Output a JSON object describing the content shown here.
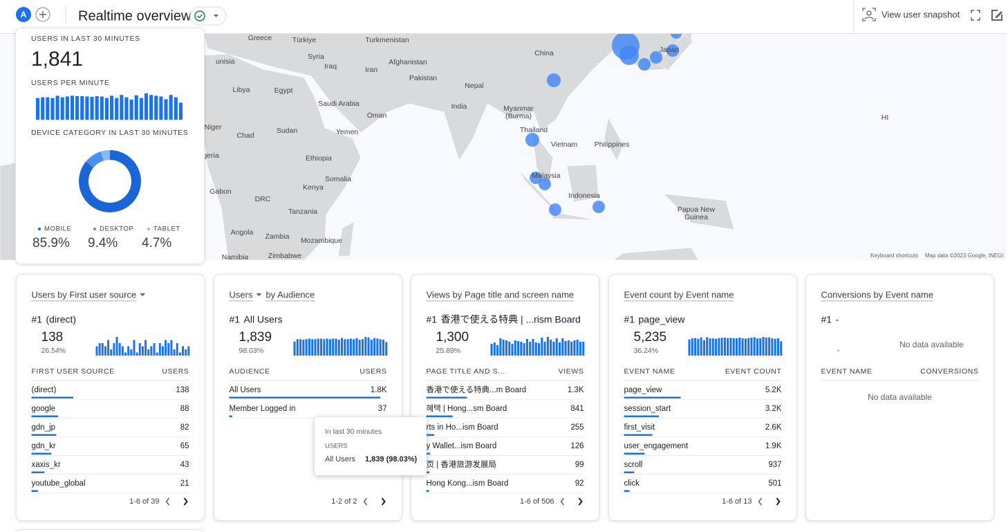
{
  "header": {
    "avatar": "A",
    "title": "Realtime overview",
    "snapshot": "View user snapshot"
  },
  "map": {
    "labels": [
      "Greece",
      "Türkiye",
      "Turkmenistan",
      "unisia",
      "Syria",
      "Iraq",
      "Iran",
      "Afghanistan",
      "China",
      "Japan",
      "Libya",
      "Egypt",
      "Pakistan",
      "Nepal",
      "Saudi Arabia",
      "Oman",
      "India",
      "Myanmar",
      "(Burma)",
      "Niger",
      "Sudan",
      "Chad",
      "Yemen",
      "Thailand",
      "Vietnam",
      "Philippines",
      "geria",
      "Ethiopia",
      "Somalia",
      "Malaysia",
      "Kenya",
      "Gabon",
      "Indonesia",
      "DRC",
      "Tanzania",
      "Papua New",
      "Guinea",
      "Angola",
      "Zambia",
      "Mozambique",
      "Namibia",
      "Zimbabwe",
      "HI"
    ],
    "attribution": [
      "Keyboard shortcuts",
      "Map data ©2023 Google, INEGI"
    ]
  },
  "summary": {
    "users_label": "USERS IN LAST 30 MINUTES",
    "users": "1,841",
    "per_minute_label": "USERS PER MINUTE",
    "per_minute": [
      56,
      58,
      58,
      56,
      62,
      58,
      60,
      62,
      61,
      61,
      60,
      59,
      61,
      60,
      56,
      62,
      56,
      64,
      58,
      52,
      63,
      56,
      68,
      64,
      62,
      60,
      53,
      64,
      58,
      44
    ],
    "device_label": "DEVICE CATEGORY IN LAST 30 MINUTES",
    "devices": {
      "names": [
        "MOBILE",
        "DESKTOP",
        "TABLET"
      ],
      "values": [
        85.9,
        9.4,
        4.7
      ],
      "value_labels": [
        "85.9%",
        "9.4%",
        "4.7%"
      ],
      "colors": [
        "#1a66d6",
        "#4a90f0",
        "#8ab8f7"
      ]
    }
  },
  "cards": [
    {
      "title": [
        "Users by First user source"
      ],
      "caret_after": 0,
      "top_rank": "#1",
      "top_name": "(direct)",
      "top_value": 138,
      "top_value_label": "138",
      "top_share": 26.54,
      "top_share_label": "26.54%",
      "sparkline": [
        3,
        4,
        4,
        3,
        5,
        2,
        4,
        6,
        4,
        3,
        1,
        3,
        2,
        5,
        1,
        4,
        3,
        5,
        2,
        3,
        4,
        1,
        4,
        3,
        5,
        4,
        5,
        2,
        4,
        1,
        3,
        2,
        3
      ],
      "columns": [
        "FIRST USER SOURCE",
        "USERS"
      ],
      "rows": [
        "(direct)",
        "google",
        "gdn_jp",
        "gdn_kr",
        "xaxis_kr",
        "youtube_global"
      ],
      "values": [
        138,
        88,
        82,
        65,
        43,
        21
      ],
      "pagination": "1-6 of 39"
    },
    {
      "title": [
        "Users",
        "by Audience"
      ],
      "caret_after": 0,
      "top_rank": "#1",
      "top_name": "All Users",
      "top_value": 1839,
      "top_value_label": "1,839",
      "top_share": 98.03,
      "top_share_label": "98.03%",
      "sparkline": [
        50,
        58,
        58,
        56,
        58,
        60,
        58,
        58,
        60,
        60,
        58,
        60,
        58,
        60,
        60,
        56,
        62,
        58,
        58,
        60,
        58,
        62,
        56,
        58,
        66,
        64,
        56,
        62,
        60,
        58,
        56,
        48
      ],
      "columns": [
        "AUDIENCE",
        "USERS"
      ],
      "rows": [
        "All Users",
        "Member Logged in"
      ],
      "values": [
        1800,
        37
      ],
      "value_labels": [
        "1.8K",
        "37"
      ],
      "pagination": "1-2 of 2"
    },
    {
      "title": [
        "Views by Page title and screen name"
      ],
      "top_rank": "#1",
      "top_name": "香港で使える特典 | ...rism Board",
      "top_value": 1300,
      "top_value_label": "1,300",
      "top_share": 25.89,
      "top_share_label": "25.89%",
      "sparkline": [
        34,
        38,
        30,
        50,
        46,
        44,
        40,
        34,
        44,
        42,
        40,
        36,
        48,
        40,
        48,
        38,
        36,
        52,
        40,
        54,
        46,
        40,
        50,
        38,
        50,
        42,
        44,
        40,
        44,
        46,
        40,
        40
      ],
      "columns": [
        "PAGE TITLE AND S...",
        "VIEWS"
      ],
      "rows": [
        "香港で使える特典...m Board",
        "혜택 | Hong...sm Board",
        "rts in Ho...ism Board",
        "y Wallet...ism Board",
        "页 | 香港旅游发展局",
        "Hong Kong...ism Board"
      ],
      "values": [
        1300,
        841,
        255,
        126,
        99,
        92
      ],
      "value_labels": [
        "1.3K",
        "841",
        "255",
        "126",
        "99",
        "92"
      ],
      "pagination": "1-6 of 506"
    },
    {
      "title": [
        "Event count by Event name"
      ],
      "top_rank": "#1",
      "top_name": "page_view",
      "top_value": 5235,
      "top_value_label": "5,235",
      "top_share": 36.24,
      "top_share_label": "36.24%",
      "sparkline": [
        140,
        150,
        152,
        146,
        158,
        134,
        160,
        150,
        150,
        146,
        152,
        154,
        156,
        152,
        154,
        152,
        150,
        156,
        150,
        148,
        152,
        156,
        160,
        150,
        150,
        162,
        156,
        158,
        150,
        146,
        150,
        124
      ],
      "columns": [
        "EVENT NAME",
        "EVENT COUNT"
      ],
      "rows": [
        "page_view",
        "session_start",
        "first_visit",
        "user_engagement",
        "scroll",
        "click"
      ],
      "values": [
        5200,
        3200,
        2600,
        1900,
        937,
        501
      ],
      "value_labels": [
        "5.2K",
        "3.2K",
        "2.6K",
        "1.9K",
        "937",
        "501"
      ],
      "pagination": "1-6 of 13"
    },
    {
      "title": [
        "Conversions by Event name"
      ],
      "top_rank": "#1",
      "top_name": "-",
      "top_value_label": "-",
      "no_data": "No data available",
      "columns": [
        "EVENT NAME",
        "CONVERSIONS"
      ]
    }
  ],
  "tooltip": {
    "period": "In last 30 minutes",
    "metric": "USERS",
    "name": "All Users",
    "value": "1,839 (98.03%)"
  }
}
